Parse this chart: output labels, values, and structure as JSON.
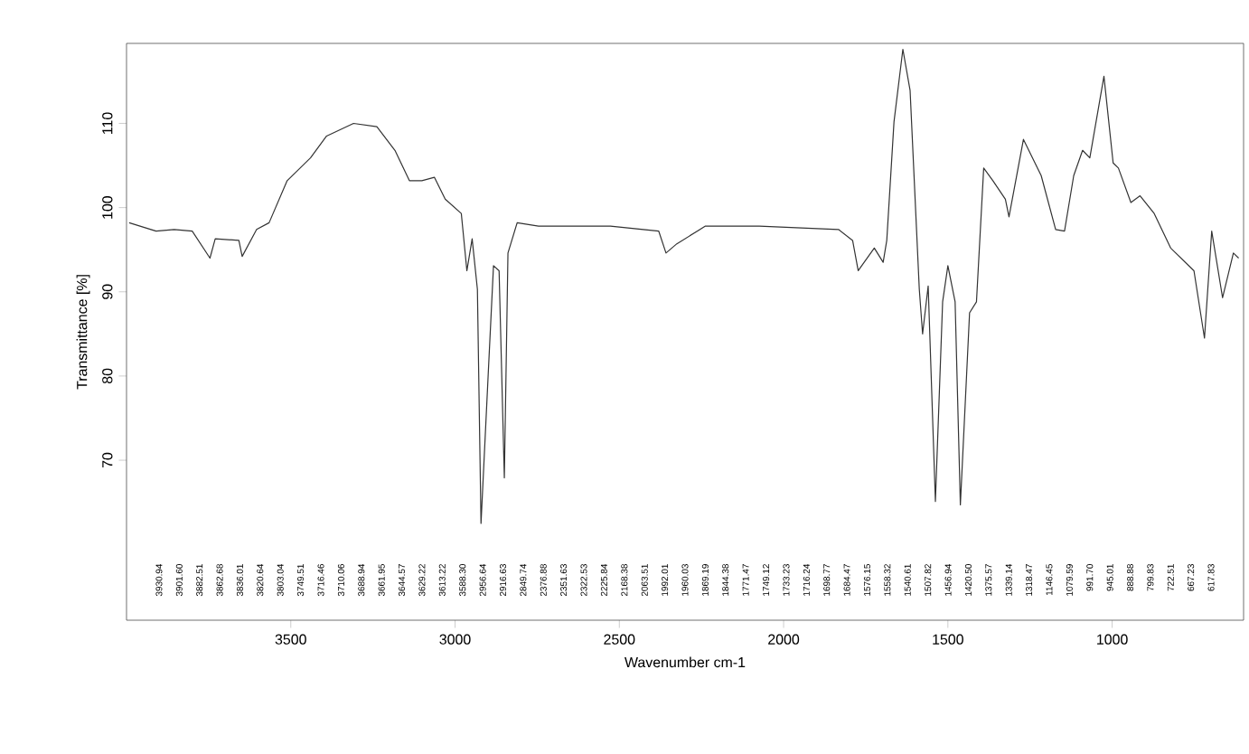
{
  "chart_data": {
    "type": "line",
    "xlabel": "Wavenumber cm-1",
    "ylabel": "Transmittance [%]",
    "xlim": [
      4000,
      600
    ],
    "xticks": [
      3500,
      3000,
      2500,
      2000,
      1500,
      1000
    ],
    "ylim": [
      51,
      119.5
    ],
    "yticks": [
      70,
      80,
      90,
      100,
      110
    ],
    "series": [
      {
        "color": "#333333",
        "x": [
          3992,
          3910,
          3855,
          3800,
          3746,
          3730,
          3658,
          3648,
          3604,
          3566,
          3511,
          3440,
          3391,
          3309,
          3238,
          3183,
          3139,
          3101,
          3063,
          3030,
          2981,
          2964,
          2948,
          2932,
          2921,
          2899,
          2883,
          2866,
          2850,
          2839,
          2811,
          2746,
          2527,
          2380,
          2358,
          2325,
          2238,
          2074,
          1833,
          1790,
          1773,
          1724,
          1697,
          1686,
          1664,
          1637,
          1615,
          1587,
          1577,
          1560,
          1538,
          1516,
          1500,
          1478,
          1462,
          1434,
          1413,
          1391,
          1363,
          1325,
          1314,
          1270,
          1216,
          1172,
          1145,
          1117,
          1090,
          1068,
          1025,
          997,
          981,
          943,
          915,
          872,
          822,
          751,
          719,
          697,
          664,
          631,
          615
        ],
        "values": [
          98.2,
          97.2,
          97.4,
          97.2,
          94.0,
          96.3,
          96.1,
          94.2,
          97.4,
          98.2,
          103.2,
          105.9,
          108.5,
          110,
          109.6,
          106.8,
          103.2,
          103.2,
          103.6,
          101.0,
          99.3,
          92.5,
          96.3,
          90.3,
          62.5,
          80.3,
          93.1,
          92.5,
          67.9,
          94.6,
          98.2,
          97.8,
          97.8,
          97.2,
          94.6,
          95.7,
          97.8,
          97.8,
          97.4,
          96.1,
          92.5,
          95.2,
          93.5,
          96.1,
          110.2,
          118.8,
          113.9,
          90.3,
          85,
          90.7,
          65.1,
          88.8,
          93.1,
          88.8,
          64.7,
          87.5,
          88.8,
          104.7,
          103.2,
          101,
          98.9,
          108.1,
          103.8,
          97.4,
          97.2,
          103.8,
          106.8,
          105.9,
          115.6,
          105.3,
          104.7,
          100.6,
          101.4,
          99.3,
          95.2,
          92.5,
          84.5,
          97.2,
          89.3,
          94.6,
          94
        ]
      }
    ],
    "annotations": [
      "3930.94",
      "3901.60",
      "3882.51",
      "3862.68",
      "3836.01",
      "3820.64",
      "3803.04",
      "3749.51",
      "3716.46",
      "3710.06",
      "3688.94",
      "3661.95",
      "3644.57",
      "3629.22",
      "3613.22",
      "3588.30",
      "2956.64",
      "2916.63",
      "2849.74",
      "2376.88",
      "2351.63",
      "2322.53",
      "2225.84",
      "2168.38",
      "2063.51",
      "1992.01",
      "1960.03",
      "1869.19",
      "1844.38",
      "1771.47",
      "1749.12",
      "1733.23",
      "1716.24",
      "1698.77",
      "1684.47",
      "1576.15",
      "1558.32",
      "1540.61",
      "1507.82",
      "1456.94",
      "1420.50",
      "1375.57",
      "1339.14",
      "1318.47",
      "1146.45",
      "1079.59",
      "991.70",
      "945.01",
      "888.88",
      "799.83",
      "722.51",
      "667.23",
      "617.83"
    ]
  }
}
